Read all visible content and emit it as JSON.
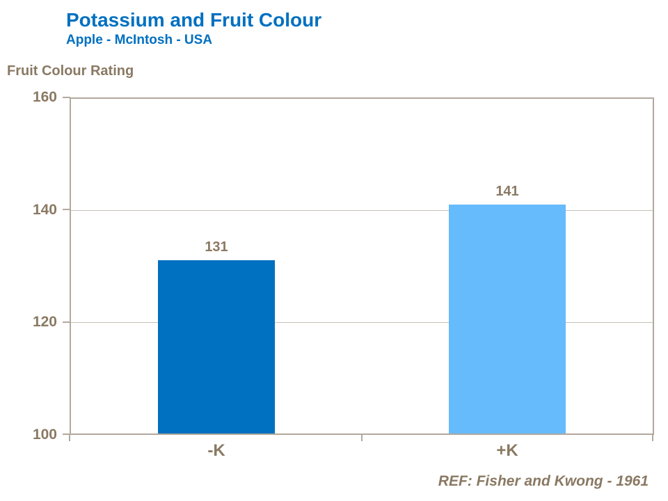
{
  "header": {
    "title": "Potassium and Fruit Colour",
    "subtitle": "Apple - McIntosh - USA"
  },
  "chart_data": {
    "type": "bar",
    "title": "Potassium and Fruit Colour",
    "subtitle": "Apple - McIntosh - USA",
    "ylabel": "Fruit Colour Rating",
    "xlabel": "",
    "categories": [
      "-K",
      "+K"
    ],
    "values": [
      131,
      141
    ],
    "data_labels": [
      "131",
      "141"
    ],
    "bar_colors": [
      "#0070C0",
      "#66BBFC"
    ],
    "ylim": [
      100,
      160
    ],
    "yticks": [
      100,
      120,
      140,
      160
    ],
    "grid": true,
    "legend": false
  },
  "footer": {
    "reference": "REF: Fisher and Kwong - 1961"
  },
  "colors": {
    "accent_blue": "#0070C0",
    "bar_dark": "#0070C0",
    "bar_light": "#66BBFC",
    "text_brown": "#8A7963",
    "axis_line": "#B2A89E",
    "gridline": "#C8C0B7",
    "background": "#FFFFFF"
  }
}
